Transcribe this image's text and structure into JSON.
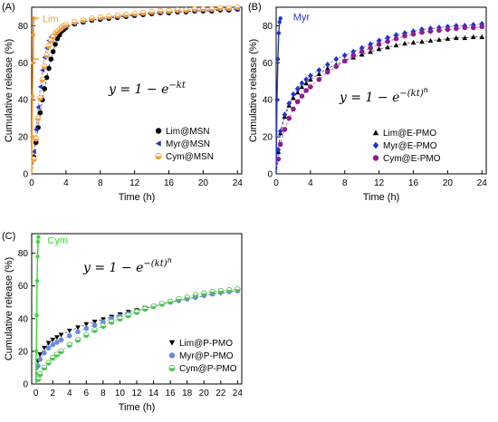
{
  "chart_data": [
    {
      "panel": "(A)",
      "type": "scatter",
      "xlabel": "Time (h)",
      "ylabel": "Cumulative release (%)",
      "xlim": [
        0,
        24.5
      ],
      "ylim": [
        0,
        90
      ],
      "xticks": [
        0,
        4,
        8,
        12,
        16,
        20,
        24
      ],
      "yticks": [
        0,
        20,
        40,
        60,
        80
      ],
      "equation": "y = 1 − e^(−kt)",
      "inset_label": "Lim",
      "inset_color": "#f39c34",
      "legend_position": "lower-right",
      "series": [
        {
          "name": "Lim@MSN",
          "marker": "circle",
          "color": "#000000",
          "x": [
            0.25,
            0.5,
            0.75,
            1.0,
            1.25,
            1.5,
            1.75,
            2.0,
            2.25,
            2.5,
            2.75,
            3.0,
            3.25,
            3.5,
            3.75,
            4,
            5,
            6,
            7,
            8,
            9,
            10,
            11,
            12,
            13,
            14,
            15,
            16,
            17,
            18,
            19,
            20,
            21,
            22,
            23,
            24
          ],
          "y": [
            9,
            17,
            25,
            33,
            40,
            46,
            52,
            57,
            62,
            66,
            70,
            73,
            75,
            77,
            78,
            79,
            81,
            82,
            83,
            83.5,
            84,
            84.5,
            85,
            85.5,
            86,
            86.5,
            87,
            87,
            87.5,
            87.5,
            88,
            88,
            88,
            88.5,
            88.5,
            89
          ]
        },
        {
          "name": "Myr@MSN",
          "marker": "triangle-left",
          "color": "#2233cc",
          "x": [
            0.25,
            0.5,
            0.75,
            1.0,
            1.25,
            1.5,
            1.75,
            2.0,
            2.25,
            2.5,
            2.75,
            3.0,
            3.25,
            3.5,
            3.75,
            4,
            5,
            6,
            7,
            8,
            9,
            10,
            11,
            12,
            13,
            14,
            15,
            16,
            17,
            18,
            19,
            20,
            21,
            22,
            23,
            24
          ],
          "y": [
            12,
            24,
            36,
            47,
            56,
            63,
            68,
            72,
            74,
            75,
            76,
            77,
            78,
            78.5,
            79,
            79.5,
            81,
            82,
            83,
            84,
            84.5,
            85,
            85.5,
            86,
            86.5,
            87,
            87,
            87.5,
            87.5,
            88,
            88,
            88.5,
            88.5,
            89,
            89,
            89
          ]
        },
        {
          "name": "Cym@MSN",
          "marker": "circle-half",
          "color": "#f39c34",
          "x": [
            0.25,
            0.5,
            0.75,
            1.0,
            1.25,
            1.5,
            1.75,
            2.0,
            2.25,
            2.5,
            2.75,
            3.0,
            3.25,
            3.5,
            3.75,
            4,
            5,
            6,
            7,
            8,
            9,
            10,
            11,
            12,
            13,
            14,
            15,
            16,
            17,
            18,
            19,
            20,
            21,
            22,
            23,
            24
          ],
          "y": [
            8,
            19,
            30,
            41,
            51,
            58,
            64,
            69,
            72,
            74,
            76,
            77,
            78,
            79,
            80,
            80.5,
            82,
            83,
            84,
            84.5,
            85,
            85.5,
            86,
            86.5,
            87,
            87.5,
            88,
            88,
            88.5,
            88.5,
            89,
            89,
            89,
            89.5,
            89.5,
            90
          ]
        }
      ],
      "inset_series": {
        "x": [
          0,
          0.05,
          0.1,
          0.15,
          0.2,
          0.25
        ],
        "y": [
          0,
          20,
          42,
          60,
          75,
          84
        ]
      }
    },
    {
      "panel": "(B)",
      "type": "scatter",
      "xlabel": "Time (h)",
      "ylabel": "Cumulative release (%)",
      "xlim": [
        0,
        24.5
      ],
      "ylim": [
        0,
        90
      ],
      "xticks": [
        0,
        4,
        8,
        12,
        16,
        20,
        24
      ],
      "yticks": [
        0,
        20,
        40,
        60,
        80
      ],
      "equation": "y = 1 − e^(−(kt)^n)",
      "inset_label": "Myr",
      "inset_color": "#2233cc",
      "legend_position": "lower-right",
      "series": [
        {
          "name": "Lim@E-PMO",
          "marker": "triangle-up",
          "color": "#000000",
          "x": [
            0.25,
            0.5,
            1,
            1.5,
            2,
            2.5,
            3,
            3.5,
            4,
            5,
            6,
            7,
            8,
            9,
            10,
            11,
            12,
            13,
            14,
            15,
            16,
            17,
            18,
            19,
            20,
            21,
            22,
            23,
            24
          ],
          "y": [
            12,
            22,
            31,
            37,
            41,
            44,
            47,
            49,
            51,
            54,
            57,
            59,
            61,
            63,
            64.5,
            66,
            67.5,
            68.5,
            69.5,
            70.5,
            71,
            71.5,
            72,
            72.5,
            73,
            73.5,
            73.5,
            74,
            74
          ]
        },
        {
          "name": "Myr@E-PMO",
          "marker": "diamond",
          "color": "#2233cc",
          "x": [
            0.25,
            0.5,
            1,
            1.5,
            2,
            2.5,
            3,
            3.5,
            4,
            5,
            6,
            7,
            8,
            9,
            10,
            11,
            12,
            13,
            14,
            15,
            16,
            17,
            18,
            19,
            20,
            21,
            22,
            23,
            24
          ],
          "y": [
            13,
            23,
            32,
            38,
            43,
            46,
            49,
            51,
            53,
            56,
            59,
            62,
            64,
            66,
            68,
            70,
            72,
            73.5,
            75,
            76,
            77,
            78,
            78.5,
            79,
            79.5,
            80,
            80,
            80.5,
            81
          ]
        },
        {
          "name": "Cym@E-PMO",
          "marker": "circle",
          "color": "#8e1e8e",
          "x": [
            0.25,
            0.5,
            1,
            1.5,
            2,
            2.5,
            3,
            3.5,
            4,
            5,
            6,
            7,
            8,
            9,
            10,
            11,
            12,
            13,
            14,
            15,
            16,
            17,
            18,
            19,
            20,
            21,
            22,
            23,
            24
          ],
          "y": [
            8,
            16,
            24,
            30,
            35,
            39,
            42,
            45,
            47,
            51,
            55,
            58,
            61,
            64,
            66,
            68,
            70,
            71.5,
            73,
            74.5,
            75.5,
            76.5,
            77,
            77.5,
            78,
            78.5,
            79,
            79,
            79.5
          ]
        }
      ],
      "inset_series": {
        "x": [
          0,
          0.1,
          0.2,
          0.3,
          0.4,
          0.5
        ],
        "y": [
          0,
          40,
          62,
          76,
          82,
          84
        ]
      }
    },
    {
      "panel": "(C)",
      "type": "scatter",
      "xlabel": "Time (h)",
      "ylabel": "Cumulative release (%)",
      "xlim": [
        -0.5,
        24.5
      ],
      "ylim": [
        0,
        92
      ],
      "xticks": [
        0,
        2,
        4,
        6,
        8,
        10,
        12,
        14,
        16,
        18,
        20,
        22,
        24
      ],
      "yticks": [
        0,
        20,
        40,
        60,
        80
      ],
      "equation": "y = 1 − e^(−(kt)^n)",
      "inset_label": "Cym",
      "inset_color": "#33dd33",
      "legend_position": "lower-center",
      "series": [
        {
          "name": "Lim@P-PMO",
          "marker": "triangle-down",
          "color": "#000000",
          "x": [
            0.25,
            0.5,
            1,
            1.5,
            2,
            2.5,
            3,
            4,
            5,
            6,
            7,
            8,
            9,
            10,
            11,
            12,
            13,
            14,
            15,
            16,
            17,
            18,
            19,
            20,
            21,
            22,
            23,
            24
          ],
          "y": [
            14,
            18,
            22,
            25,
            27,
            28.5,
            30,
            32.5,
            34.5,
            36.5,
            38,
            39.5,
            41,
            42.5,
            44,
            45,
            46.5,
            47.5,
            49,
            50,
            51,
            52,
            53,
            54,
            55,
            55.5,
            56.5,
            57
          ]
        },
        {
          "name": "Myr@P-PMO",
          "marker": "circle",
          "color": "#6a8ae0",
          "x": [
            0.25,
            0.5,
            1,
            1.5,
            2,
            2.5,
            3,
            4,
            5,
            6,
            7,
            8,
            9,
            10,
            11,
            12,
            13,
            14,
            15,
            16,
            17,
            18,
            19,
            20,
            21,
            22,
            23,
            24
          ],
          "y": [
            11,
            15,
            19,
            22,
            24,
            25.5,
            27,
            29.5,
            32,
            34,
            36,
            38,
            40,
            41.5,
            43,
            44.5,
            46,
            47.5,
            49,
            50,
            51,
            52,
            53,
            54,
            55,
            56,
            56.5,
            57
          ]
        },
        {
          "name": "Cym@P-PMO",
          "marker": "circle-half",
          "color": "#4cc24c",
          "x": [
            0.25,
            0.5,
            1,
            1.5,
            2,
            2.5,
            3,
            4,
            5,
            6,
            7,
            8,
            9,
            10,
            11,
            12,
            13,
            14,
            15,
            16,
            17,
            18,
            19,
            20,
            21,
            22,
            23,
            24
          ],
          "y": [
            3,
            6,
            10,
            13,
            16,
            18,
            20,
            24,
            27,
            30,
            33,
            35.5,
            38,
            40,
            42,
            44,
            46,
            47.5,
            49,
            50.5,
            52,
            53,
            54.5,
            55.5,
            56.5,
            57,
            57.5,
            58
          ]
        }
      ],
      "inset_series": {
        "x": [
          0,
          0.05,
          0.1,
          0.15,
          0.2,
          0.25,
          0.3
        ],
        "y": [
          0,
          20,
          42,
          63,
          78,
          87,
          90
        ]
      }
    }
  ]
}
